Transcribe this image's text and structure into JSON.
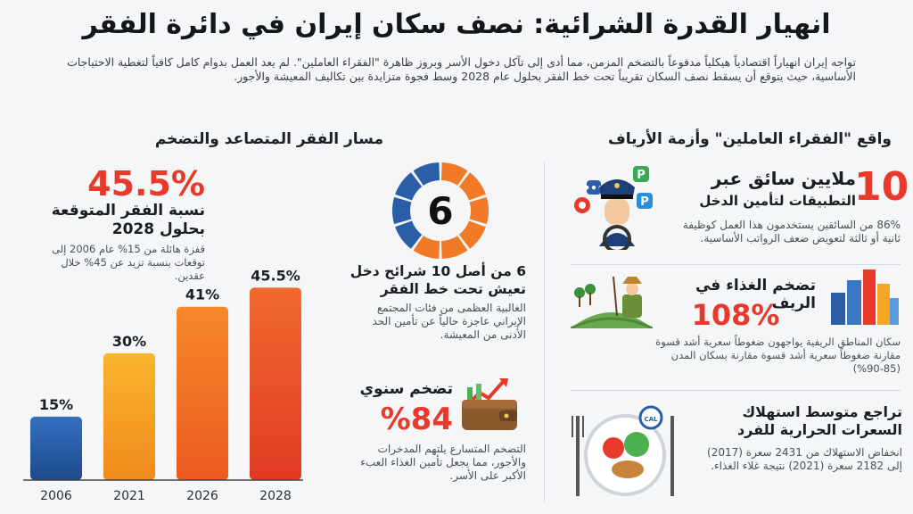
{
  "header": {
    "title": "انهيار القدرة الشرائية: نصف سكان إيران في دائرة الفقر",
    "intro": "تواجه إيران انهياراً اقتصادياً هيكلياً مدفوعاً بالتضخم المزمن، مما أدى إلى تآكل دخول الأسر وبروز ظاهرة \"الفقراء العاملين\". لم يعد العمل بدوام كامل كافياً لتغطية الاحتياجات الأساسية، حيث يتوقع أن يسقط نصف السكان تقريباً تحت خط الفقر بحلول عام 2028 وسط فجوة متزايدة بين تكاليف المعيشة والأجور."
  },
  "left_section": {
    "heading": "مسار الفقر المتصاعد والتضخم",
    "big_pct": "45.5%",
    "big_label": "نسبة الفقر المتوقعة بحلول 2028",
    "big_desc": "قفزة هائلة من 15% عام 2006 إلى توقعات بنسبة تزيد عن 45% خلال عقدين."
  },
  "chart_data": {
    "type": "bar",
    "categories": [
      "2006",
      "2021",
      "2026",
      "2028"
    ],
    "values": [
      15,
      30,
      41,
      45.5
    ],
    "data_labels": [
      "15%",
      "30%",
      "41%",
      "45.5%"
    ],
    "colors": [
      "#2a5fa8",
      "#f5a623",
      "#f47a20",
      "#e8452b"
    ]
  },
  "donut": {
    "center": "6",
    "filled": 6,
    "total": 10,
    "title": "6 من أصل 10 شرائح دخل تعيش تحت خط الفقر",
    "desc": "الغالبية العظمى من فئات المجتمع الإيراني عاجزة حالياً عن تأمين الحد الأدنى من المعيشة.",
    "colors": {
      "filled": "#f07a26",
      "empty": "#2a5fa8"
    }
  },
  "inflation": {
    "title": "تضخم سنوي",
    "value": "%84",
    "desc": "التضخم المتسارع يلتهم المدخرات والأجور، مما يجعل تأمين الغذاء العبء الأكبر على الأسر."
  },
  "right_section": {
    "heading": "واقع \"الفقراء العاملين\" وأزمة الأرياف",
    "drivers": {
      "number": "10",
      "title_line1": "ملايين سائق عبر",
      "title_line2": "التطبيقات لتأمين الدخل",
      "desc": "86% من السائقين يستخدمون هذا العمل كوظيفة ثانية أو ثالثة لتعويض ضعف الرواتب الأساسية.",
      "icon_letter": "P"
    },
    "rural": {
      "title": "تضخم الغذاء في الريف",
      "value": "108%",
      "desc": "سكان المناطق الريفية يواجهون ضغوطاً سعرية أشد قسوة مقارنة ضغوطاً سعرية أشد قسوة مقارنة بسكان المدن (85-90%)"
    },
    "calories": {
      "title": "تراجع متوسط استهلاك السعرات الحرارية للفرد",
      "desc": "انخفاض الاستهلاك من 2431 سعرة (2017) إلى 2182 سعرة (2021) نتيجة غلاء الغذاء.",
      "gauge_label": "CAL"
    }
  }
}
